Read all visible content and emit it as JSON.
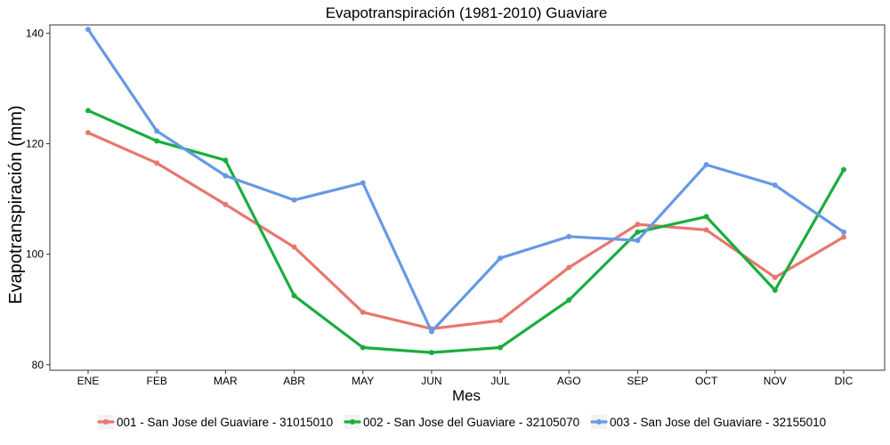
{
  "chart_data": {
    "type": "line",
    "title": "Evapotranspiración (1981-2010)  Guaviare",
    "xlabel": "Mes",
    "ylabel": "Evapotranspiración  (mm)",
    "categories": [
      "ENE",
      "FEB",
      "MAR",
      "ABR",
      "MAY",
      "JUN",
      "JUL",
      "AGO",
      "SEP",
      "OCT",
      "NOV",
      "DIC"
    ],
    "ylim": [
      79,
      141.5
    ],
    "yticks": [
      80,
      100,
      120,
      140
    ],
    "grid": false,
    "legend_position": "bottom",
    "series": [
      {
        "name": "001 - San Jose del Guaviare - 31015010",
        "color": "#e8776f",
        "values": [
          122.0,
          116.5,
          109.0,
          101.3,
          89.5,
          86.5,
          88.0,
          97.6,
          105.4,
          104.4,
          95.8,
          103.1
        ]
      },
      {
        "name": "002 - San Jose del Guaviare - 32105070",
        "color": "#1bad3f",
        "values": [
          126.0,
          120.5,
          117.0,
          92.5,
          83.1,
          82.2,
          83.1,
          91.7,
          104.0,
          106.8,
          93.5,
          115.3
        ]
      },
      {
        "name": "003 - San Jose del Guaviare - 32155010",
        "color": "#6699e6",
        "values": [
          140.7,
          122.3,
          114.2,
          109.8,
          112.9,
          86.0,
          99.3,
          103.2,
          102.5,
          116.2,
          112.5,
          104.0
        ]
      }
    ]
  }
}
